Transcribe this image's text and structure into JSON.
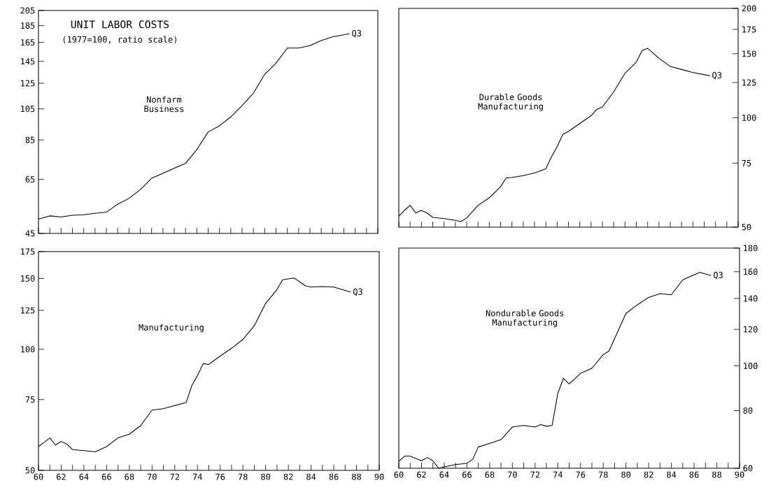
{
  "chart_data": [
    {
      "type": "line",
      "title": "UNIT LABOR COSTS",
      "subtitle": "(1977=100, ratio scale)",
      "log": true,
      "tick_labels": "y",
      "xlim": [
        60,
        90
      ],
      "xticks": [
        60,
        {
          "value": 61,
          "label": null
        },
        62,
        {
          "value": 63,
          "label": null
        },
        64,
        {
          "value": 65,
          "label": null
        },
        66,
        {
          "value": 67,
          "label": null
        },
        68,
        {
          "value": 69,
          "label": null
        },
        70,
        {
          "value": 71,
          "label": null
        },
        72,
        {
          "value": 73,
          "label": null
        },
        74,
        {
          "value": 75,
          "label": null
        },
        76,
        {
          "value": 77,
          "label": null
        },
        78,
        {
          "value": 79,
          "label": null
        },
        80,
        {
          "value": 81,
          "label": null
        },
        82,
        {
          "value": 83,
          "label": null
        },
        84,
        {
          "value": 85,
          "label": null
        },
        86,
        {
          "value": 87,
          "label": null
        },
        88,
        {
          "value": 89,
          "label": null
        },
        90
      ],
      "ylim": [
        45,
        205
      ],
      "yticks": [
        45,
        65,
        85,
        105,
        125,
        145,
        165,
        185,
        205
      ],
      "annotations": [
        {
          "text": "Q3",
          "x": 87.5,
          "y": 175
        }
      ],
      "series": [
        {
          "name": "Nonfarm Business",
          "color": "#000000",
          "x": [
            60,
            61,
            62,
            63,
            64,
            65,
            66,
            67,
            68,
            69,
            70,
            71,
            72,
            73,
            74,
            75,
            76,
            77,
            78,
            79,
            80,
            81,
            82,
            83,
            84,
            85,
            86,
            87.5
          ],
          "values": [
            49.6,
            50.7,
            50.3,
            50.9,
            51.1,
            51.6,
            52.0,
            54.9,
            57.1,
            60.6,
            65.5,
            67.7,
            70.1,
            72.5,
            79.6,
            89.7,
            93.6,
            99.4,
            107.3,
            116.8,
            132.8,
            143.3,
            158.8,
            158.8,
            161.5,
            167.1,
            171.4,
            175.0
          ]
        }
      ]
    },
    {
      "type": "line",
      "log": "y2",
      "tick_labels": "y",
      "xlim": [
        60,
        90
      ],
      "xticks": [
        60,
        {
          "value": 61,
          "label": null
        },
        62,
        {
          "value": 63,
          "label": null
        },
        64,
        {
          "value": 65,
          "label": null
        },
        66,
        {
          "value": 67,
          "label": null
        },
        68,
        {
          "value": 69,
          "label": null
        },
        70,
        {
          "value": 71,
          "label": null
        },
        72,
        {
          "value": 73,
          "label": null
        },
        74,
        {
          "value": 75,
          "label": null
        },
        76,
        {
          "value": 77,
          "label": null
        },
        78,
        {
          "value": 79,
          "label": null
        },
        80,
        {
          "value": 81,
          "label": null
        },
        82,
        {
          "value": 83,
          "label": null
        },
        84,
        {
          "value": 85,
          "label": null
        },
        86,
        {
          "value": 87,
          "label": null
        },
        88,
        {
          "value": 89,
          "label": null
        },
        90
      ],
      "y2lim": [
        50,
        200
      ],
      "y2ticks": [
        50,
        75,
        100,
        125,
        150,
        175,
        200
      ],
      "annotations": [
        "Q3"
      ],
      "series": [
        {
          "name": "Durable Goods Manufacturing",
          "color": "#000000",
          "axis": "y2",
          "x": [
            60,
            60.5,
            61,
            61.5,
            62,
            62.5,
            63,
            64,
            65,
            65.5,
            66,
            67,
            68,
            69,
            69.5,
            70,
            71,
            72,
            73,
            73.5,
            74,
            74.5,
            75,
            76,
            77,
            77.5,
            78,
            79,
            80,
            81,
            81.5,
            82,
            83,
            84,
            85,
            86,
            87.5
          ],
          "values": [
            53.6,
            55.6,
            57.4,
            54.7,
            55.6,
            54.7,
            53.2,
            52.8,
            52.2,
            51.8,
            53.0,
            57.4,
            60.2,
            64.6,
            68.3,
            68.5,
            69.3,
            70.5,
            72.4,
            78.1,
            83.2,
            90.0,
            91.7,
            96.4,
            101.3,
            105.4,
            107.1,
            117.8,
            132.6,
            142.3,
            152.8,
            155.3,
            145.8,
            138.4,
            135.8,
            133.2,
            130.5
          ]
        }
      ]
    },
    {
      "type": "line",
      "log": true,
      "xlim": [
        60,
        90
      ],
      "xticks": [
        60,
        {
          "value": 61,
          "label": null
        },
        62,
        {
          "value": 63,
          "label": null
        },
        64,
        {
          "value": 65,
          "label": null
        },
        66,
        {
          "value": 67,
          "label": null
        },
        68,
        {
          "value": 69,
          "label": null
        },
        70,
        {
          "value": 71,
          "label": null
        },
        72,
        {
          "value": 73,
          "label": null
        },
        74,
        {
          "value": 75,
          "label": null
        },
        76,
        {
          "value": 77,
          "label": null
        },
        78,
        {
          "value": 79,
          "label": null
        },
        80,
        {
          "value": 81,
          "label": null
        },
        82,
        {
          "value": 83,
          "label": null
        },
        84,
        {
          "value": 85,
          "label": null
        },
        86,
        {
          "value": 87,
          "label": null
        },
        88,
        {
          "value": 89,
          "label": null
        },
        90
      ],
      "ylim": [
        50,
        175
      ],
      "yticks": [
        50,
        75,
        100,
        125,
        150,
        175
      ],
      "annotations": [
        {
          "text": "Q3",
          "x": 87.5,
          "y": 138.7
        }
      ],
      "series": [
        {
          "name": "Manufacturing",
          "color": "#000000",
          "x": [
            60,
            60.5,
            61,
            61.5,
            62,
            62.5,
            63,
            64,
            65,
            66,
            67,
            68,
            69,
            70,
            71,
            72,
            73,
            73.5,
            74,
            74.5,
            75,
            76,
            77,
            78,
            79,
            80,
            81,
            81.5,
            82.5,
            83.5,
            84,
            85,
            86,
            87.5
          ],
          "values": [
            57.3,
            58.7,
            60.2,
            57.8,
            59.0,
            58.1,
            56.3,
            56.0,
            55.6,
            57.3,
            60.2,
            61.5,
            64.6,
            70.6,
            71.2,
            72.5,
            73.7,
            81.2,
            86.0,
            92.1,
            91.7,
            96.2,
            100.6,
            105.8,
            114.4,
            130.1,
            140.8,
            149.0,
            150.5,
            143.8,
            142.8,
            143.2,
            142.8,
            138.7
          ]
        }
      ]
    },
    {
      "type": "line",
      "log": "y2",
      "xlim": [
        60,
        90
      ],
      "xticks": [
        60,
        {
          "value": 61,
          "label": null
        },
        62,
        {
          "value": 63,
          "label": null
        },
        64,
        {
          "value": 65,
          "label": null
        },
        66,
        {
          "value": 67,
          "label": null
        },
        68,
        {
          "value": 69,
          "label": null
        },
        70,
        {
          "value": 71,
          "label": null
        },
        72,
        {
          "value": 73,
          "label": null
        },
        74,
        {
          "value": 75,
          "label": null
        },
        76,
        {
          "value": 77,
          "label": null
        },
        78,
        {
          "value": 79,
          "label": null
        },
        80,
        {
          "value": 81,
          "label": null
        },
        82,
        {
          "value": 83,
          "label": null
        },
        84,
        {
          "value": 85,
          "label": null
        },
        86,
        {
          "value": 87,
          "label": null
        },
        88,
        {
          "value": 89,
          "label": null
        },
        90
      ],
      "y2lim": [
        60,
        180
      ],
      "y2ticks": [
        60,
        80,
        100,
        120,
        140,
        160,
        180
      ],
      "annotations": [
        "Q3"
      ],
      "series": [
        {
          "name": "Nondurable Goods Manufacturing",
          "color": "#000000",
          "axis": "y2",
          "x": [
            60,
            60.5,
            61,
            62,
            62.5,
            63,
            63.5,
            64,
            65,
            66,
            66.5,
            67,
            68,
            69,
            70,
            71,
            72,
            72.5,
            73,
            73.5,
            74,
            74.5,
            75,
            76,
            77,
            78,
            78.5,
            79,
            80,
            81,
            82,
            83,
            84,
            85,
            86,
            86.5,
            87.5
          ],
          "values": [
            62.1,
            63.7,
            63.7,
            62.3,
            63.3,
            62.3,
            60.0,
            60.4,
            61.1,
            61.5,
            62.7,
            66.7,
            67.9,
            69.2,
            73.7,
            74.3,
            73.7,
            74.6,
            74.0,
            74.3,
            87.2,
            94.0,
            91.4,
            96.3,
            98.8,
            105.8,
            107.6,
            114.6,
            129.9,
            135.6,
            140.8,
            143.4,
            142.6,
            153.6,
            157.5,
            159.5,
            157.0
          ]
        }
      ]
    }
  ]
}
